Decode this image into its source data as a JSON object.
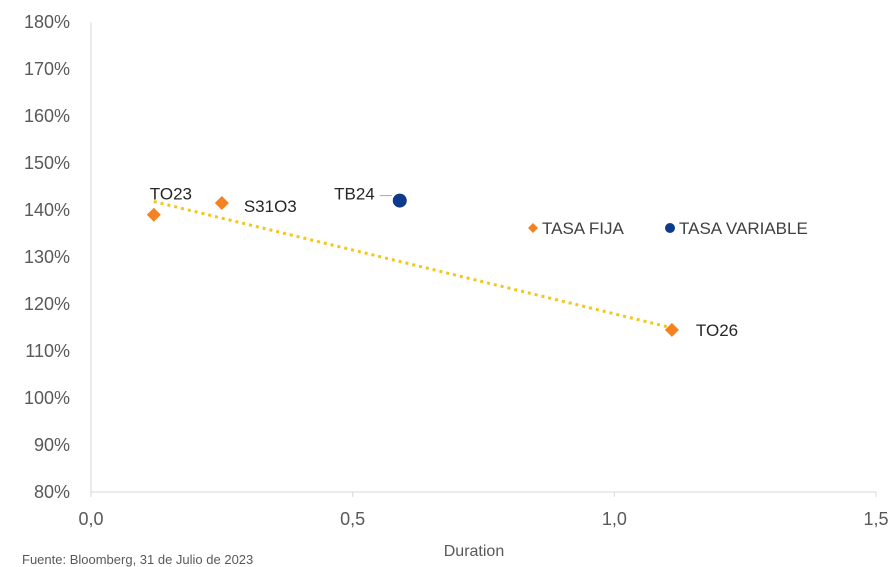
{
  "chart_data": {
    "type": "scatter",
    "title": "",
    "xlabel": "Duration",
    "ylabel": "",
    "xlim": [
      0,
      1.5
    ],
    "ylim": [
      0.8,
      1.8
    ],
    "x_ticks": [
      "0,0",
      "0,5",
      "1,0",
      "1,5"
    ],
    "y_ticks": [
      "80%",
      "90%",
      "100%",
      "110%",
      "120%",
      "130%",
      "140%",
      "150%",
      "160%",
      "170%",
      "180%"
    ],
    "series": [
      {
        "name": "TASA FIJA",
        "marker": "diamond",
        "color": "#f58220",
        "points": [
          {
            "label": "TO23",
            "x": 0.12,
            "y": 1.39
          },
          {
            "label": "S31O3",
            "x": 0.25,
            "y": 1.415
          },
          {
            "label": "TO26",
            "x": 1.11,
            "y": 1.145
          }
        ]
      },
      {
        "name": "TASA VARIABLE",
        "marker": "circle",
        "color": "#0d3a8c",
        "points": [
          {
            "label": "TB24",
            "x": 0.59,
            "y": 1.42
          }
        ]
      }
    ],
    "trendline": {
      "series": "TASA FIJA",
      "style": "dotted",
      "color": "#f5c518"
    },
    "legend_position": "right"
  },
  "footer": {
    "source": "Fuente: Bloomberg, 31 de Julio de 2023"
  }
}
